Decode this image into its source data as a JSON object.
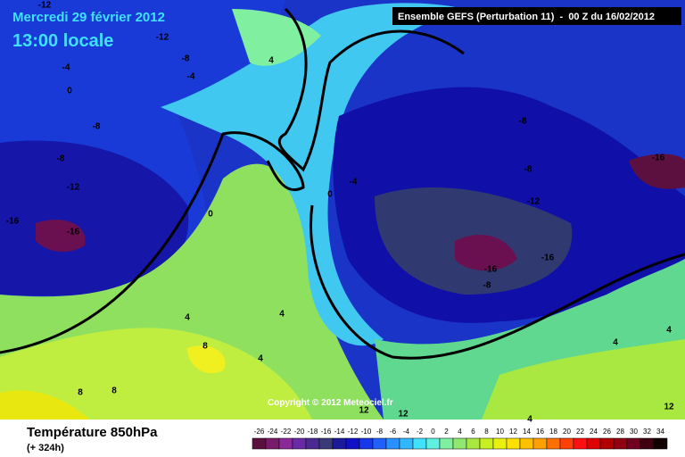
{
  "header": {
    "date": "Mercredi 29 février 2012",
    "time": "13:00 locale",
    "model": "Ensemble GEFS (Perturbation 11)  -  00 Z du 16/02/2012"
  },
  "copyright": "Copyright © 2012 Meteociel.fr",
  "footer": {
    "title": "Température 850hPa",
    "lead": "(+ 324h)"
  },
  "contour_labels": [
    "-12",
    "-12",
    "-8",
    "-4",
    "-4",
    "0",
    "-8",
    "-8",
    "-12",
    "-16",
    "-16",
    "4",
    "-8",
    "-8",
    "-4",
    "0",
    "0",
    "-12",
    "-16",
    "-16",
    "-8",
    "-16",
    "4",
    "8",
    "4",
    "4",
    "8",
    "8",
    "12",
    "12",
    "4",
    "4",
    "4",
    "12"
  ],
  "legend": {
    "ticks": [
      -26,
      -24,
      -22,
      -20,
      -18,
      -16,
      -14,
      -12,
      -10,
      -8,
      -6,
      -4,
      -2,
      0,
      2,
      4,
      6,
      8,
      10,
      12,
      14,
      16,
      18,
      20,
      22,
      24,
      26,
      28,
      30,
      32,
      34
    ],
    "colors": [
      "#5c1040",
      "#7a1a6a",
      "#8a2a9a",
      "#6a2aa8",
      "#4a2a90",
      "#3a3a78",
      "#1a1a9a",
      "#1010c8",
      "#1838e8",
      "#2060ff",
      "#2890ff",
      "#30b8ff",
      "#40e0ff",
      "#60f0e0",
      "#80f0a0",
      "#90e870",
      "#a8e840",
      "#c8f020",
      "#e8f010",
      "#ffe000",
      "#ffc000",
      "#ffa000",
      "#ff7000",
      "#ff4000",
      "#ff1010",
      "#e00000",
      "#b00000",
      "#900010",
      "#700020",
      "#400010",
      "#100000"
    ]
  }
}
